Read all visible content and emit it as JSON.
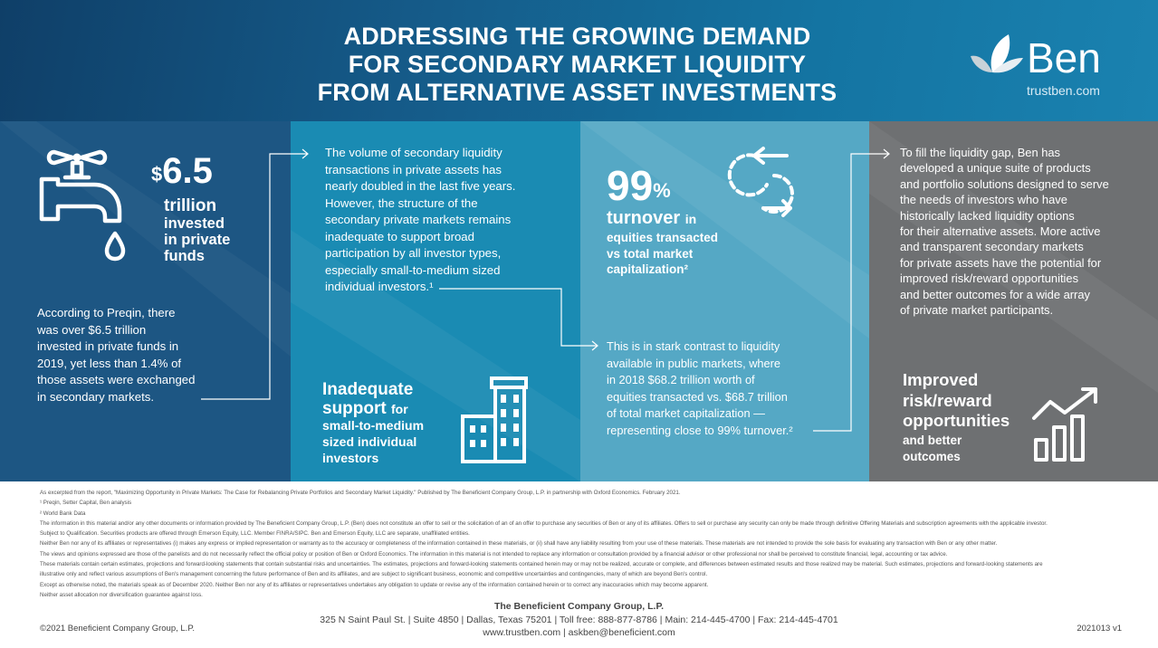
{
  "header": {
    "title_lines": [
      "ADDRESSING THE GROWING DEMAND",
      "FOR SECONDARY MARKET LIQUIDITY",
      "FROM ALTERNATIVE ASSET INVESTMENTS"
    ],
    "brand_name": "Ben",
    "brand_url": "trustben.com"
  },
  "panel1": {
    "icon": "faucet-icon",
    "currency": "$",
    "amount": "6.5",
    "stat_lines": [
      "trillion",
      "invested",
      "in private",
      "funds"
    ],
    "body_lines": [
      "According to Preqin, there",
      "was over $6.5 trillion",
      "invested in private funds in",
      "2019, yet less than 1.4% of",
      "those assets were exchanged",
      "in secondary markets."
    ]
  },
  "panel2": {
    "body_lines": [
      "The volume of secondary liquidity",
      "transactions in private assets has",
      "nearly doubled in the last five years.",
      "However, the structure of the",
      "secondary private markets remains",
      "inadequate to support broad",
      "participation by all investor types,",
      "especially small-to-medium sized",
      "individual investors.¹"
    ],
    "headline_1": "Inadequate",
    "headline_2": "support",
    "headline_2_suffix": "for",
    "sub_lines": [
      "small-to-medium",
      "sized individual",
      "investors"
    ],
    "icon": "buildings-icon"
  },
  "panel3": {
    "percent": "99",
    "percent_sign": "%",
    "turnover": "turnover",
    "turnover_suffix": "in",
    "sub_lines": [
      "equities transacted",
      "vs total market",
      "capitalization²"
    ],
    "icon": "exchange-arrows-icon",
    "body_lines": [
      "This is in stark contrast to liquidity",
      "available in public markets, where",
      "in 2018 $68.2 trillion worth of",
      "equities transacted vs. $68.7 trillion",
      "of total market capitalization —",
      "representing close to 99% turnover.²"
    ]
  },
  "panel4": {
    "body_lines": [
      "To fill the liquidity gap, Ben has",
      "developed a unique suite of products",
      "and portfolio solutions designed to serve",
      "the needs of investors who have",
      "historically lacked liquidity options",
      "for their alternative assets. More active",
      "and transparent secondary markets",
      "for private assets have the potential for",
      "improved risk/reward opportunities",
      "and better outcomes for a wide array",
      "of private market participants."
    ],
    "headline_lines": [
      "Improved",
      "risk/reward",
      "opportunities"
    ],
    "sub_lines": [
      "and better",
      "outcomes"
    ],
    "icon": "growth-chart-icon"
  },
  "disclosures": [
    "As excerpted from the report, \"Maximizing Opportunity in Private Markets: The Case for Rebalancing Private Portfolios and Secondary Market Liquidity.\" Published by The Beneficient Company Group, L.P. in partnership with Oxford Economics. February 2021.",
    "¹ Preqin, Setter Capital, Ben analysis",
    "² World Bank Data",
    "The information in this material and/or any other documents or information provided by The Beneficient Company Group, L.P. (Ben) does not constitute an offer to sell or the solicitation of an of an offer to purchase any securities of Ben or any of its affiliates. Offers to sell or purchase any security can only be made through definitive Offering Materials and subscription agreements with the applicable investor.",
    "Subject to Qualification. Securities products are offered through Emerson Equity, LLC. Member FINRA/SIPC. Ben and Emerson Equity, LLC are separate, unaffiliated entities.",
    "Neither Ben nor any of its affiliates or representatives (i) makes any express or implied representation or warranty as to the accuracy or completeness of the information contained in these materials, or (ii) shall have any liability resulting from your use of these materials. These materials are not intended to provide the sole basis for evaluating any transaction with Ben or any other matter.",
    "The views and opinions expressed are those of the panelists and do not necessarily reflect the official policy or position of Ben or Oxford Economics. The information in this material is not intended to replace any information or consultation provided by a financial advisor or other professional nor shall be perceived to constitute financial, legal, accounting or tax advice.",
    "These materials contain certain estimates, projections and forward-looking statements that contain substantial risks and uncertainties. The estimates, projections and forward-looking statements contained herein may or may not be realized, accurate or complete, and differences between estimated results and those realized may be material. Such estimates, projections and forward-looking statements are",
    "illustrative only and reflect various assumptions of Ben's management concerning the future performance of Ben and its affiliates, and are subject to significant business, economic and competitive uncertainties and contingencies, many of which are beyond Ben's control.",
    "Except as otherwise noted, the materials speak as of December 2020. Neither Ben nor any of its affiliates or representatives undertakes any obligation to update or revise any of the information contained herein or to correct any inaccuracies which may become apparent.",
    "Neither asset allocation nor diversification guarantee against loss."
  ],
  "footer": {
    "company": "The Beneficient Company Group, L.P.",
    "address": "325 N Saint Paul St. | Suite 4850 | Dallas, Texas 75201 | Toll free: 888-877-8786 | Main: 214-445-4700 | Fax: 214-445-4701",
    "web": "www.trustben.com | askben@beneficient.com",
    "copyright": "©2021 Beneficient Company Group, L.P.",
    "code": "2021013 v1"
  },
  "colors": {
    "header_dark": "#0f3f68",
    "panel_1": "#1d5683",
    "panel_2": "#1a8bb3",
    "panel_3": "#55a8c5",
    "panel_4": "#6e7072"
  }
}
